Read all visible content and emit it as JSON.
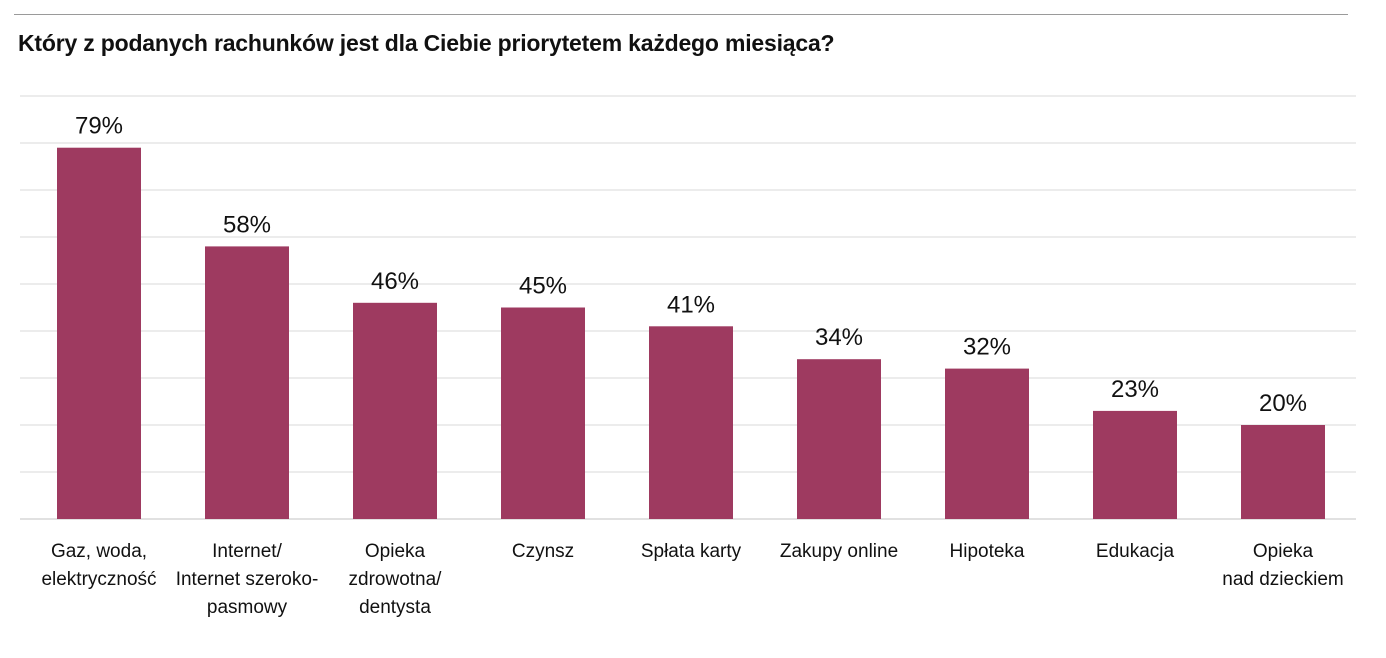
{
  "title": "Który z podanych rachunków jest dla Ciebie priorytetem każdego miesiąca?",
  "chart_data": {
    "type": "bar",
    "title": "Który z podanych rachunków jest dla Ciebie priorytetem każdego miesiąca?",
    "categories": [
      [
        "Gaz, woda,",
        "elektryczność"
      ],
      [
        "Internet/",
        "Internet szeroko-",
        "pasmowy"
      ],
      [
        "Opieka",
        "zdrowotna/",
        "dentysta"
      ],
      [
        "Czynsz"
      ],
      [
        "Spłata karty"
      ],
      [
        "Zakupy online"
      ],
      [
        "Hipoteka"
      ],
      [
        "Edukacja"
      ],
      [
        "Opieka",
        "nad dzieckiem"
      ]
    ],
    "values": [
      79,
      58,
      46,
      45,
      41,
      34,
      32,
      23,
      20
    ],
    "value_labels": [
      "79%",
      "58%",
      "46%",
      "45%",
      "41%",
      "34%",
      "32%",
      "23%",
      "20%"
    ],
    "ylim": [
      0,
      90
    ],
    "grid": true,
    "bar_color": "#9e3a60"
  }
}
